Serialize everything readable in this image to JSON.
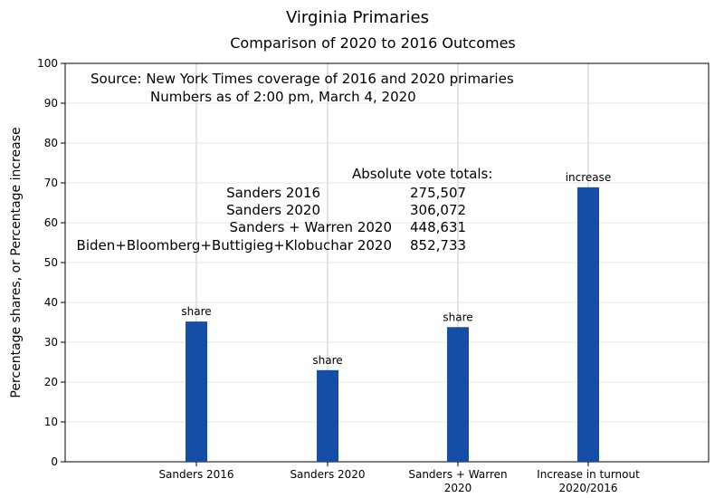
{
  "chart_data": {
    "type": "bar",
    "title": "Virginia Primaries",
    "subtitle": "Comparison of 2020 to 2016 Outcomes",
    "ylabel": "Percentage shares, or Percentage increase",
    "xlabel": "",
    "ylim": [
      0,
      100
    ],
    "yticks": [
      0,
      10,
      20,
      30,
      40,
      50,
      60,
      70,
      80,
      90,
      100
    ],
    "grid": true,
    "categories": [
      {
        "lines": [
          "Sanders 2016"
        ]
      },
      {
        "lines": [
          "Sanders 2020"
        ]
      },
      {
        "lines": [
          "Sanders + Warren",
          "2020"
        ]
      },
      {
        "lines": [
          "Increase in turnout",
          "2020/2016"
        ]
      }
    ],
    "values": [
      35.2,
      23.0,
      33.8,
      68.9
    ],
    "bar_labels": [
      "share",
      "share",
      "share",
      "increase"
    ],
    "bar_color": "#154ea6",
    "source_lines": [
      "Source:  New York Times coverage of 2016 and 2020 primaries",
      "Numbers as of 2:00 pm, March 4, 2020"
    ],
    "totals_heading": "Absolute vote totals:",
    "totals": [
      {
        "label": "Sanders 2016",
        "value": "275,507"
      },
      {
        "label": "Sanders 2020",
        "value": "306,072"
      },
      {
        "label": "Sanders + Warren 2020",
        "value": "448,631"
      },
      {
        "label": "Biden+Bloomberg+Buttigieg+Klobuchar 2020",
        "value": "852,733"
      }
    ]
  }
}
